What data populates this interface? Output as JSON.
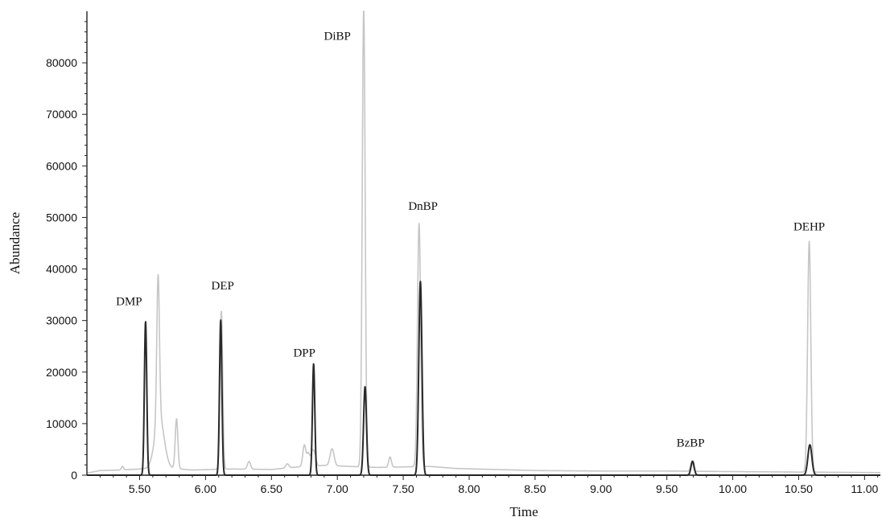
{
  "chart_data": {
    "type": "line",
    "title": "",
    "xlabel": "Time",
    "ylabel": "Abundance",
    "xlim": [
      5.1,
      11.12
    ],
    "ylim": [
      0,
      90000
    ],
    "x_ticks": [
      "5.50",
      "6.00",
      "6.50",
      "7.00",
      "7.50",
      "8.00",
      "8.50",
      "9.00",
      "9.50",
      "10.00",
      "10.50",
      "11.00"
    ],
    "y_ticks": [
      "0",
      "10000",
      "20000",
      "30000",
      "40000",
      "50000",
      "60000",
      "70000",
      "80000"
    ],
    "grid": false,
    "legend": "none",
    "colors": {
      "light_trace": "#c6c6c6",
      "dark_trace": "#2a2a2a",
      "axis": "#222222"
    },
    "series": [
      {
        "baseline": [
          [
            5.1,
            400
          ],
          [
            5.2,
            900
          ],
          [
            5.35,
            1000
          ],
          [
            5.5,
            1200
          ],
          [
            5.7,
            1400
          ],
          [
            5.9,
            1000
          ],
          [
            6.2,
            1200
          ],
          [
            6.5,
            1100
          ],
          [
            6.7,
            1600
          ],
          [
            6.9,
            1900
          ],
          [
            7.1,
            1700
          ],
          [
            7.3,
            1500
          ],
          [
            7.5,
            1600
          ],
          [
            7.7,
            1700
          ],
          [
            7.9,
            1300
          ],
          [
            8.5,
            900
          ],
          [
            9.0,
            800
          ],
          [
            9.5,
            800
          ],
          [
            10.0,
            700
          ],
          [
            10.5,
            600
          ],
          [
            11.12,
            500
          ]
        ],
        "peaks": [
          {
            "rt": 5.37,
            "height": 700,
            "width": 0.008
          },
          {
            "rt": 5.64,
            "height": 28000,
            "width": 0.01
          },
          {
            "rt": 5.65,
            "height": 10000,
            "width": 0.035
          },
          {
            "rt": 5.78,
            "height": 9700,
            "width": 0.01
          },
          {
            "rt": 6.12,
            "height": 30700,
            "width": 0.01
          },
          {
            "rt": 6.33,
            "height": 1500,
            "width": 0.012
          },
          {
            "rt": 6.62,
            "height": 800,
            "width": 0.012
          },
          {
            "rt": 6.75,
            "height": 4200,
            "width": 0.012
          },
          {
            "rt": 6.78,
            "height": 2400,
            "width": 0.01
          },
          {
            "rt": 6.81,
            "height": 2800,
            "width": 0.012
          },
          {
            "rt": 6.83,
            "height": 1800,
            "width": 0.01
          },
          {
            "rt": 6.96,
            "height": 3300,
            "width": 0.015
          },
          {
            "rt": 7.2,
            "height": 89000,
            "width": 0.011
          },
          {
            "rt": 7.4,
            "height": 2000,
            "width": 0.01
          },
          {
            "rt": 7.62,
            "height": 47200,
            "width": 0.012
          },
          {
            "rt": 9.69,
            "height": 1800,
            "width": 0.01
          },
          {
            "rt": 10.58,
            "height": 44800,
            "width": 0.012
          }
        ]
      },
      {
        "baseline": [
          [
            5.1,
            0
          ],
          [
            11.12,
            0
          ]
        ],
        "peaks": [
          {
            "rt": 5.545,
            "height": 29800,
            "width": 0.009
          },
          {
            "rt": 6.115,
            "height": 30100,
            "width": 0.009
          },
          {
            "rt": 6.82,
            "height": 21600,
            "width": 0.009
          },
          {
            "rt": 7.21,
            "height": 17200,
            "width": 0.011
          },
          {
            "rt": 7.63,
            "height": 37600,
            "width": 0.012
          },
          {
            "rt": 9.695,
            "height": 2700,
            "width": 0.012
          },
          {
            "rt": 10.585,
            "height": 5900,
            "width": 0.015
          }
        ]
      }
    ],
    "annotations": [
      {
        "text": "DMP",
        "x": 5.42,
        "y": 33000
      },
      {
        "text": "DEP",
        "x": 6.13,
        "y": 36000
      },
      {
        "text": "DPP",
        "x": 6.75,
        "y": 23000
      },
      {
        "text": "DiBP",
        "x": 7.0,
        "y": 84500
      },
      {
        "text": "DnBP",
        "x": 7.65,
        "y": 51500
      },
      {
        "text": "BzBP",
        "x": 9.68,
        "y": 5500
      },
      {
        "text": "DEHP",
        "x": 10.58,
        "y": 47500
      }
    ]
  }
}
